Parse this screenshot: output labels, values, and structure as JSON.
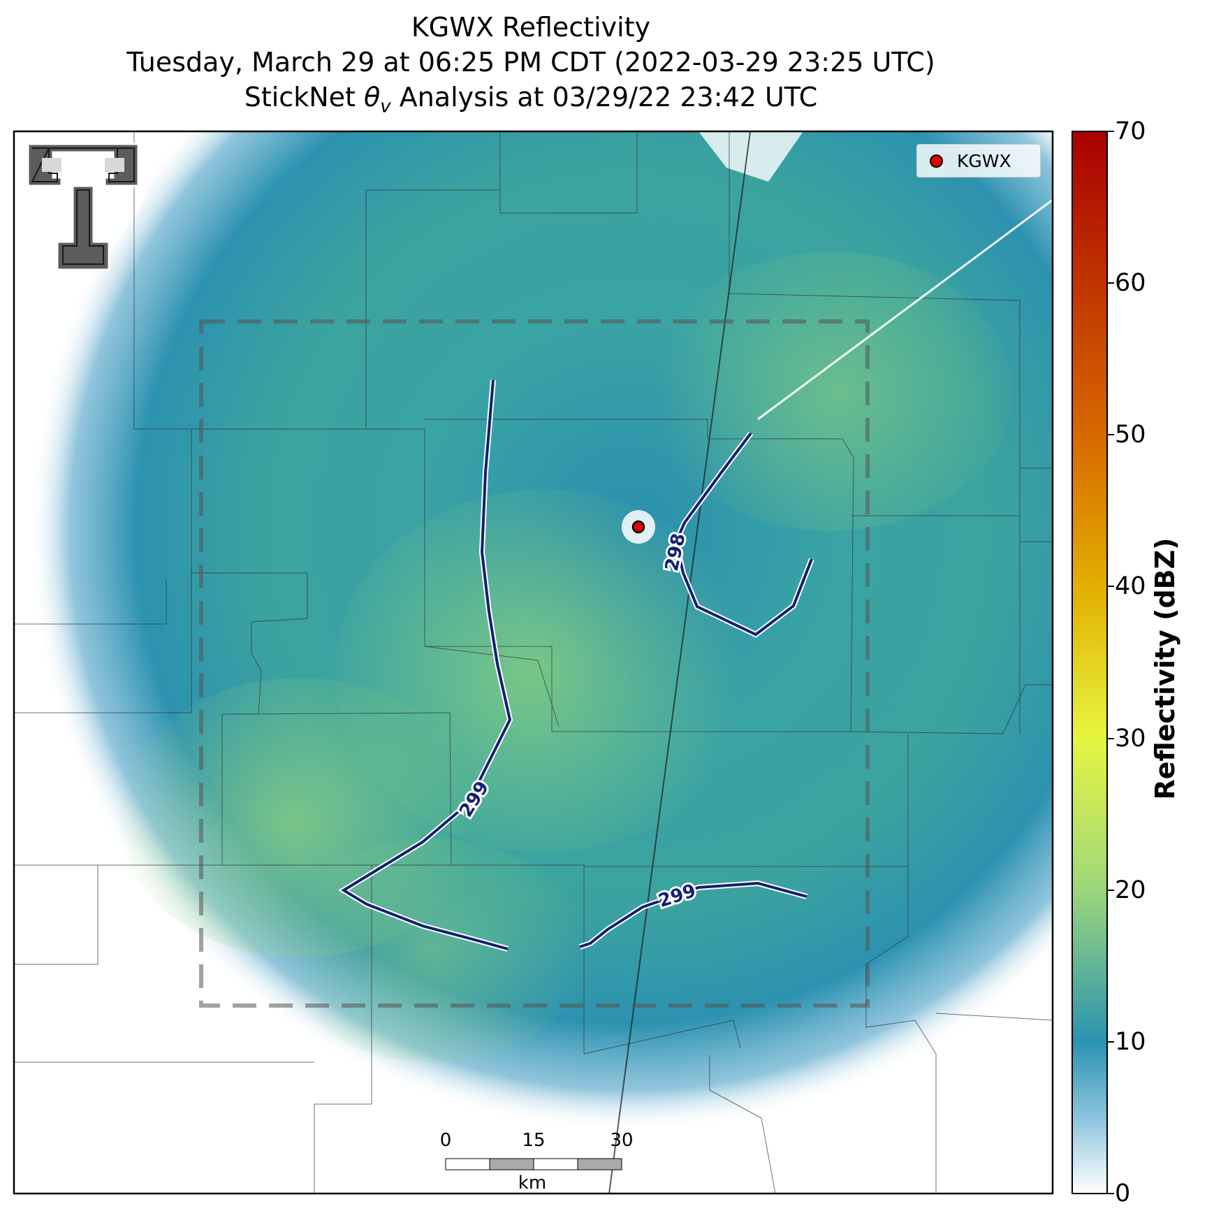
{
  "title": {
    "line1": "KGWX Reflectivity",
    "line2": "Tuesday, March 29 at 06:25 PM CDT (2022-03-29 23:25 UTC)",
    "line3_pre": "StickNet ",
    "line3_symbol": "θ",
    "line3_sub": "v",
    "line3_post": " Analysis at 03/29/22 23:42 UTC"
  },
  "legend": {
    "label": "KGWX",
    "color": "#e00000"
  },
  "colorbar": {
    "label": "Reflectivity (dBZ)",
    "ticks": [
      "70",
      "60",
      "50",
      "40",
      "30",
      "20",
      "10",
      "0"
    ],
    "range": [
      0,
      70
    ],
    "colors": [
      "#ffffff",
      "#2a93b0",
      "#4fb59a",
      "#9fd87a",
      "#e6f53f",
      "#e2b000",
      "#d86a00",
      "#a90000"
    ]
  },
  "contours": {
    "color": "#14206e",
    "labels": [
      "299",
      "298",
      "299"
    ]
  },
  "radar": {
    "site": "KGWX",
    "marker_color": "#e00000"
  },
  "scalebar": {
    "ticks": [
      "0",
      "15",
      "30"
    ],
    "unit": "km"
  },
  "logo": {
    "icon": "texas-tech-double-t-logo"
  }
}
